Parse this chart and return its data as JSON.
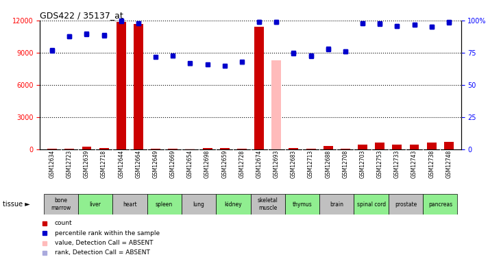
{
  "title": "GDS422 / 35137_at",
  "samples": [
    "GSM12634",
    "GSM12723",
    "GSM12639",
    "GSM12718",
    "GSM12644",
    "GSM12664",
    "GSM12649",
    "GSM12669",
    "GSM12654",
    "GSM12698",
    "GSM12659",
    "GSM12728",
    "GSM12674",
    "GSM12693",
    "GSM12683",
    "GSM12713",
    "GSM12688",
    "GSM12708",
    "GSM12703",
    "GSM12753",
    "GSM12733",
    "GSM12743",
    "GSM12738",
    "GSM12748"
  ],
  "tissues": [
    {
      "label": "bone\nmarrow",
      "start": 0,
      "end": 2,
      "color": "#c0c0c0"
    },
    {
      "label": "liver",
      "start": 2,
      "end": 4,
      "color": "#90ee90"
    },
    {
      "label": "heart",
      "start": 4,
      "end": 6,
      "color": "#c0c0c0"
    },
    {
      "label": "spleen",
      "start": 6,
      "end": 8,
      "color": "#90ee90"
    },
    {
      "label": "lung",
      "start": 8,
      "end": 10,
      "color": "#c0c0c0"
    },
    {
      "label": "kidney",
      "start": 10,
      "end": 12,
      "color": "#90ee90"
    },
    {
      "label": "skeletal\nmuscle",
      "start": 12,
      "end": 14,
      "color": "#c0c0c0"
    },
    {
      "label": "thymus",
      "start": 14,
      "end": 16,
      "color": "#90ee90"
    },
    {
      "label": "brain",
      "start": 16,
      "end": 18,
      "color": "#c0c0c0"
    },
    {
      "label": "spinal cord",
      "start": 18,
      "end": 20,
      "color": "#90ee90"
    },
    {
      "label": "prostate",
      "start": 20,
      "end": 22,
      "color": "#c0c0c0"
    },
    {
      "label": "pancreas",
      "start": 22,
      "end": 24,
      "color": "#90ee90"
    }
  ],
  "count_values": [
    50,
    50,
    200,
    100,
    11900,
    11700,
    50,
    50,
    50,
    100,
    100,
    50,
    11400,
    8300,
    100,
    50,
    300,
    50,
    400,
    600,
    400,
    400,
    600,
    700
  ],
  "count_is_absent": [
    false,
    false,
    false,
    false,
    false,
    false,
    false,
    false,
    true,
    false,
    false,
    false,
    false,
    true,
    false,
    false,
    false,
    false,
    false,
    false,
    false,
    false,
    false,
    false
  ],
  "rank_values": [
    9200,
    10500,
    10700,
    10600,
    11950,
    11750,
    8600,
    8700,
    8000,
    7900,
    7800,
    8100,
    11900,
    11850,
    8900,
    8700,
    9300,
    9100,
    11750,
    11700,
    11500,
    11600,
    11400,
    11800
  ],
  "rank_is_absent": [
    false,
    false,
    false,
    false,
    false,
    false,
    true,
    true,
    true,
    true,
    true,
    true,
    false,
    false,
    false,
    false,
    false,
    false,
    false,
    false,
    false,
    false,
    false,
    false
  ],
  "percentile_values": [
    77,
    88,
    90,
    89,
    100,
    98,
    72,
    73,
    67,
    66,
    65,
    68,
    99,
    99,
    75,
    73,
    78,
    76,
    98,
    98,
    96,
    97,
    95,
    99
  ],
  "ylim_left": [
    0,
    12000
  ],
  "ylim_right": [
    0,
    100
  ],
  "yticks_left": [
    0,
    3000,
    6000,
    9000,
    12000
  ],
  "yticks_right": [
    0,
    25,
    50,
    75,
    100
  ],
  "bar_color": "#cc0000",
  "bar_absent_color": "#ffbbbb",
  "rank_present_color": "#0000cc",
  "rank_absent_color": "#aaaadd",
  "bg_color": "#ffffff"
}
